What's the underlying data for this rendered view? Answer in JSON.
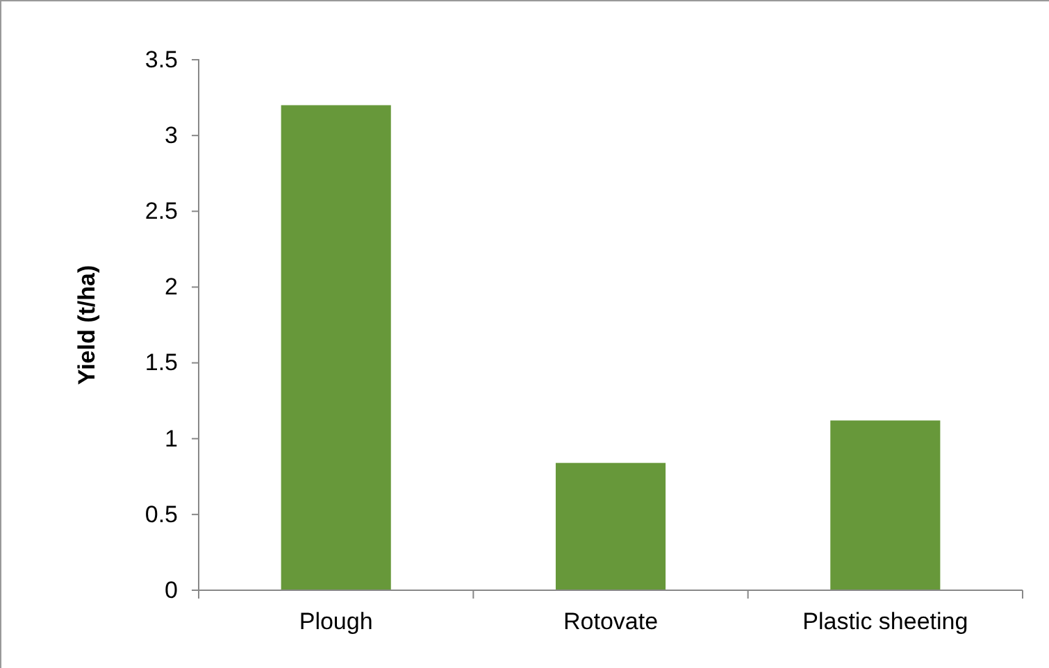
{
  "chart_data": {
    "type": "bar",
    "ylabel": "Yield (t/ha)",
    "categories": [
      "Plough",
      "Rotovate",
      "Plastic sheeting"
    ],
    "values": [
      3.2,
      0.84,
      1.12
    ],
    "color": "#67983a",
    "ylim": [
      0,
      3.5
    ],
    "yticks": [
      0,
      0.5,
      1,
      1.5,
      2,
      2.5,
      3,
      3.5
    ],
    "grid": false
  }
}
